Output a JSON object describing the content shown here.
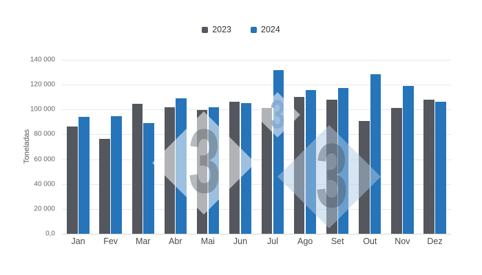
{
  "chart_data": {
    "type": "bar",
    "title": "",
    "xlabel": "",
    "ylabel": "Toneladas",
    "categories": [
      "Jan",
      "Fev",
      "Mar",
      "Abr",
      "Mai",
      "Jun",
      "Jul",
      "Ago",
      "Set",
      "Out",
      "Nov",
      "Dez"
    ],
    "series": [
      {
        "name": "2023",
        "color": "#54575d",
        "values": [
          86500,
          76500,
          104500,
          102000,
          99500,
          106000,
          101500,
          110000,
          108000,
          90500,
          101500,
          108000
        ]
      },
      {
        "name": "2024",
        "color": "#2674b9",
        "values": [
          94000,
          94500,
          89000,
          109000,
          102000,
          105000,
          131500,
          115500,
          117500,
          128500,
          119000,
          106500
        ]
      }
    ],
    "ylim": [
      0,
      140000
    ],
    "ytick_step": 20000,
    "ytick_labels": [
      "0,0",
      "20 000",
      "40 000",
      "60 000",
      "80 000",
      "100 000",
      "120 000",
      "140 000"
    ],
    "grid": true,
    "legend_position": "top-center"
  },
  "watermark": {
    "glyph": "3"
  },
  "colors": {
    "grid": "#e7e7e7",
    "axis_line": "#d6d6d6",
    "axis_text": "#666666",
    "category_text": "#4a4a4a",
    "legend_text": "#333333"
  }
}
